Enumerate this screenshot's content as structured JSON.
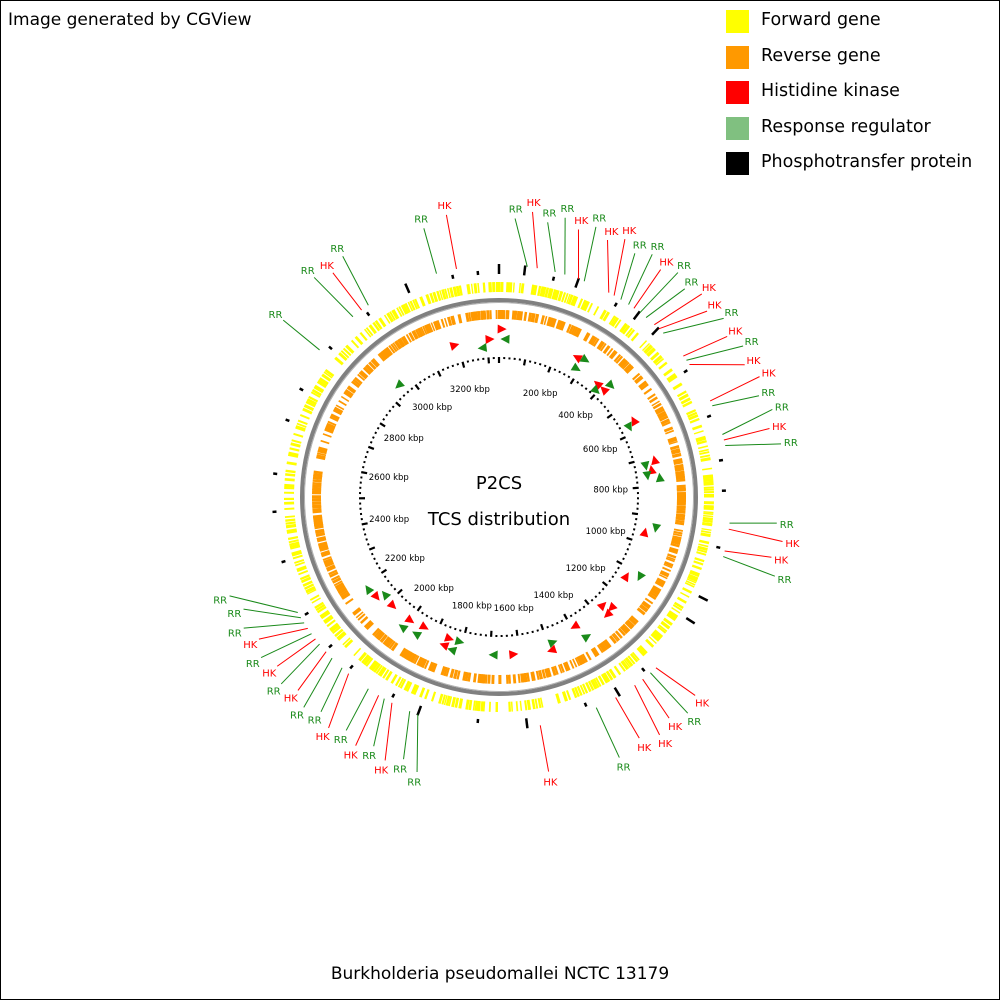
{
  "credit": "Image generated by CGView",
  "center_title": "P2CS",
  "center_subtitle": "TCS distribution",
  "organism": "Burkholderia pseudomallei NCTC 13179",
  "legend": [
    {
      "label": "Forward gene",
      "color": "#ffff00"
    },
    {
      "label": "Reverse gene",
      "color": "#ff9900"
    },
    {
      "label": "Histidine kinase",
      "color": "#ff0000"
    },
    {
      "label": "Response regulator",
      "color": "#80c080"
    },
    {
      "label": "Phosphotransfer protein",
      "color": "#000000"
    }
  ],
  "chart_data": {
    "type": "circular-genome-map",
    "genome_length_kbp": 3340,
    "scale_labels_kbp": [
      200,
      400,
      600,
      800,
      1000,
      1200,
      1400,
      1600,
      1800,
      2000,
      2200,
      2400,
      2600,
      2800,
      3000,
      3200
    ],
    "scale_unit": "kbp",
    "feature_labels": [
      {
        "text": "RR",
        "type": "RR",
        "kbp": 65
      },
      {
        "text": "HK",
        "type": "HK",
        "kbp": 88
      },
      {
        "text": "RR",
        "type": "RR",
        "kbp": 130
      },
      {
        "text": "RR",
        "type": "RR",
        "kbp": 153
      },
      {
        "text": "HK",
        "type": "HK",
        "kbp": 186
      },
      {
        "text": "RR",
        "type": "RR",
        "kbp": 200
      },
      {
        "text": "HK",
        "type": "HK",
        "kbp": 262
      },
      {
        "text": "HK",
        "type": "HK",
        "kbp": 276
      },
      {
        "text": "RR",
        "type": "RR",
        "kbp": 294
      },
      {
        "text": "RR",
        "type": "RR",
        "kbp": 315
      },
      {
        "text": "HK",
        "type": "HK",
        "kbp": 330
      },
      {
        "text": "RR",
        "type": "RR",
        "kbp": 347
      },
      {
        "text": "RR",
        "type": "RR",
        "kbp": 365
      },
      {
        "text": "HK",
        "type": "HK",
        "kbp": 390
      },
      {
        "text": "HK",
        "type": "HK",
        "kbp": 404
      },
      {
        "text": "RR",
        "type": "RR",
        "kbp": 418
      },
      {
        "text": "HK",
        "type": "HK",
        "kbp": 488
      },
      {
        "text": "RR",
        "type": "RR",
        "kbp": 500
      },
      {
        "text": "HK",
        "type": "HK",
        "kbp": 512
      },
      {
        "text": "HK",
        "type": "HK",
        "kbp": 608
      },
      {
        "text": "RR",
        "type": "RR",
        "kbp": 620
      },
      {
        "text": "RR",
        "type": "RR",
        "kbp": 690
      },
      {
        "text": "HK",
        "type": "HK",
        "kbp": 703
      },
      {
        "text": "RR",
        "type": "RR",
        "kbp": 716
      },
      {
        "text": "RR",
        "type": "RR",
        "kbp": 895
      },
      {
        "text": "HK",
        "type": "HK",
        "kbp": 909
      },
      {
        "text": "HK",
        "type": "HK",
        "kbp": 960
      },
      {
        "text": "RR",
        "type": "RR",
        "kbp": 973
      },
      {
        "text": "HK",
        "type": "HK",
        "kbp": 1275
      },
      {
        "text": "RR",
        "type": "RR",
        "kbp": 1292
      },
      {
        "text": "HK",
        "type": "HK",
        "kbp": 1315
      },
      {
        "text": "HK",
        "type": "HK",
        "kbp": 1338
      },
      {
        "text": "HK",
        "type": "HK",
        "kbp": 1390
      },
      {
        "text": "RR",
        "type": "RR",
        "kbp": 1440
      },
      {
        "text": "HK",
        "type": "HK",
        "kbp": 1575
      },
      {
        "text": "RR",
        "type": "RR",
        "kbp": 1880
      },
      {
        "text": "RR",
        "type": "RR",
        "kbp": 1860
      },
      {
        "text": "HK",
        "type": "HK",
        "kbp": 1925
      },
      {
        "text": "RR",
        "type": "RR",
        "kbp": 1945
      },
      {
        "text": "HK",
        "type": "HK",
        "kbp": 2045
      },
      {
        "text": "RR",
        "type": "RR",
        "kbp": 2065
      },
      {
        "text": "RR",
        "type": "RR",
        "kbp": 2097
      },
      {
        "text": "HK",
        "type": "HK",
        "kbp": 2117
      },
      {
        "text": "RR",
        "type": "RR",
        "kbp": 1988
      },
      {
        "text": "HK",
        "type": "HK",
        "kbp": 1960
      },
      {
        "text": "RR",
        "type": "RR",
        "kbp": 2140
      },
      {
        "text": "HK",
        "type": "HK",
        "kbp": 2155
      },
      {
        "text": "RR",
        "type": "RR",
        "kbp": 2170
      },
      {
        "text": "HK",
        "type": "HK",
        "kbp": 2185
      },
      {
        "text": "RR",
        "type": "RR",
        "kbp": 2200
      },
      {
        "text": "RR",
        "type": "RR",
        "kbp": 2214
      },
      {
        "text": "RR",
        "type": "RR",
        "kbp": 2228
      },
      {
        "text": "RR",
        "type": "RR",
        "kbp": 2870
      },
      {
        "text": "RR",
        "type": "RR",
        "kbp": 2978
      },
      {
        "text": "HK",
        "type": "HK",
        "kbp": 3003
      },
      {
        "text": "RR",
        "type": "RR",
        "kbp": 3022
      },
      {
        "text": "RR",
        "type": "RR",
        "kbp": 3195
      },
      {
        "text": "HK",
        "type": "HK",
        "kbp": 3242
      }
    ]
  }
}
